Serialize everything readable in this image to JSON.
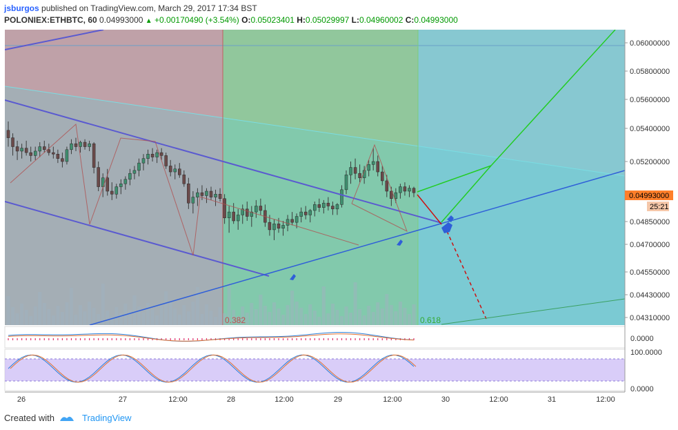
{
  "header": {
    "user": "jsburgos",
    "published_text": "published on TradingView.com, March 29, 2017 17:34 BST",
    "symbol": "POLONIEX:ETHBTC, 60",
    "last": "0.04993000",
    "change": "+0.00170490 (+3.54%)",
    "open_label": "O:",
    "open": "0.05023401",
    "high_label": "H:",
    "high": "0.05029997",
    "low_label": "L:",
    "low": "0.04960002",
    "close_label": "C:",
    "close": "0.04993000"
  },
  "footer": {
    "created_with": "Created with",
    "brand": "TradingView"
  },
  "colors": {
    "accent": "#2962ff",
    "up": "#009900",
    "price_tag": "#ff7f2a",
    "timer_tag": "#f5c7a9",
    "fib_red": "#c06060",
    "fib_green": "#7ccd7c",
    "fib_cyan": "#58c8d0"
  },
  "chart_data": {
    "type": "candlestick",
    "title": "POLONIEX:ETHBTC, 60",
    "price_axis_ticks": [
      "0.06000000",
      "0.05800000",
      "0.05600000",
      "0.05400000",
      "0.05200000",
      "0.04850000",
      "0.04700000",
      "0.04550000",
      "0.04430000",
      "0.04310000"
    ],
    "current_price_label": "0.04993000",
    "countdown_label": "25:21",
    "fib_labels": [
      "0.382",
      "0.618"
    ],
    "time_axis_ticks": [
      "26",
      "27",
      "12:00",
      "28",
      "12:00",
      "29",
      "12:00",
      "30",
      "12:00",
      "31",
      "12:00"
    ],
    "macd_axis": [
      "0.0000"
    ],
    "stoch_axis": [
      "100.0000",
      "0.0000"
    ],
    "candles": [
      {
        "o": 0.0541,
        "h": 0.0547,
        "l": 0.053,
        "c": 0.0536
      },
      {
        "o": 0.0536,
        "h": 0.0539,
        "l": 0.0524,
        "c": 0.053
      },
      {
        "o": 0.053,
        "h": 0.0534,
        "l": 0.0521,
        "c": 0.0527
      },
      {
        "o": 0.0527,
        "h": 0.0532,
        "l": 0.0522,
        "c": 0.0529
      },
      {
        "o": 0.0529,
        "h": 0.0534,
        "l": 0.0524,
        "c": 0.0526
      },
      {
        "o": 0.0526,
        "h": 0.053,
        "l": 0.052,
        "c": 0.0524
      },
      {
        "o": 0.0524,
        "h": 0.053,
        "l": 0.0521,
        "c": 0.0527
      },
      {
        "o": 0.0527,
        "h": 0.0533,
        "l": 0.0523,
        "c": 0.053
      },
      {
        "o": 0.053,
        "h": 0.0534,
        "l": 0.0526,
        "c": 0.0528
      },
      {
        "o": 0.0528,
        "h": 0.0532,
        "l": 0.0524,
        "c": 0.0526
      },
      {
        "o": 0.0526,
        "h": 0.053,
        "l": 0.0522,
        "c": 0.0525
      },
      {
        "o": 0.0525,
        "h": 0.0528,
        "l": 0.0519,
        "c": 0.0522
      },
      {
        "o": 0.0522,
        "h": 0.0526,
        "l": 0.0516,
        "c": 0.052
      },
      {
        "o": 0.052,
        "h": 0.053,
        "l": 0.0518,
        "c": 0.0528
      },
      {
        "o": 0.0528,
        "h": 0.0535,
        "l": 0.0525,
        "c": 0.0532
      },
      {
        "o": 0.0532,
        "h": 0.0536,
        "l": 0.0527,
        "c": 0.053
      },
      {
        "o": 0.053,
        "h": 0.0534,
        "l": 0.0526,
        "c": 0.0533
      },
      {
        "o": 0.0533,
        "h": 0.0535,
        "l": 0.0528,
        "c": 0.053
      },
      {
        "o": 0.053,
        "h": 0.0534,
        "l": 0.0527,
        "c": 0.0532
      },
      {
        "o": 0.0532,
        "h": 0.0533,
        "l": 0.0512,
        "c": 0.0516
      },
      {
        "o": 0.0516,
        "h": 0.052,
        "l": 0.05,
        "c": 0.0503
      },
      {
        "o": 0.0503,
        "h": 0.0512,
        "l": 0.0496,
        "c": 0.0509
      },
      {
        "o": 0.0509,
        "h": 0.0515,
        "l": 0.0497,
        "c": 0.05
      },
      {
        "o": 0.05,
        "h": 0.0506,
        "l": 0.0494,
        "c": 0.0498
      },
      {
        "o": 0.0498,
        "h": 0.0505,
        "l": 0.0495,
        "c": 0.0503
      },
      {
        "o": 0.0503,
        "h": 0.0508,
        "l": 0.0498,
        "c": 0.0505
      },
      {
        "o": 0.0505,
        "h": 0.051,
        "l": 0.0501,
        "c": 0.0508
      },
      {
        "o": 0.0508,
        "h": 0.0515,
        "l": 0.0504,
        "c": 0.0512
      },
      {
        "o": 0.0512,
        "h": 0.0517,
        "l": 0.0508,
        "c": 0.0514
      },
      {
        "o": 0.0514,
        "h": 0.0522,
        "l": 0.051,
        "c": 0.0519
      },
      {
        "o": 0.0519,
        "h": 0.0525,
        "l": 0.0514,
        "c": 0.0522
      },
      {
        "o": 0.0522,
        "h": 0.0528,
        "l": 0.0518,
        "c": 0.0525
      },
      {
        "o": 0.0525,
        "h": 0.0529,
        "l": 0.052,
        "c": 0.0523
      },
      {
        "o": 0.0523,
        "h": 0.0528,
        "l": 0.0519,
        "c": 0.0526
      },
      {
        "o": 0.0526,
        "h": 0.0529,
        "l": 0.0521,
        "c": 0.0524
      },
      {
        "o": 0.0524,
        "h": 0.0526,
        "l": 0.0515,
        "c": 0.0517
      },
      {
        "o": 0.0517,
        "h": 0.0521,
        "l": 0.051,
        "c": 0.0513
      },
      {
        "o": 0.0513,
        "h": 0.0518,
        "l": 0.0508,
        "c": 0.0515
      },
      {
        "o": 0.0515,
        "h": 0.0519,
        "l": 0.0509,
        "c": 0.0511
      },
      {
        "o": 0.0511,
        "h": 0.0514,
        "l": 0.0503,
        "c": 0.0505
      },
      {
        "o": 0.0505,
        "h": 0.0509,
        "l": 0.0488,
        "c": 0.0492
      },
      {
        "o": 0.0492,
        "h": 0.05,
        "l": 0.0485,
        "c": 0.0496
      },
      {
        "o": 0.0496,
        "h": 0.0502,
        "l": 0.049,
        "c": 0.0499
      },
      {
        "o": 0.0499,
        "h": 0.0504,
        "l": 0.0494,
        "c": 0.0497
      },
      {
        "o": 0.0497,
        "h": 0.0502,
        "l": 0.0492,
        "c": 0.05
      },
      {
        "o": 0.05,
        "h": 0.0503,
        "l": 0.0494,
        "c": 0.0496
      },
      {
        "o": 0.0496,
        "h": 0.0501,
        "l": 0.049,
        "c": 0.0498
      },
      {
        "o": 0.0498,
        "h": 0.0502,
        "l": 0.0493,
        "c": 0.0495
      },
      {
        "o": 0.0495,
        "h": 0.0498,
        "l": 0.0478,
        "c": 0.0482
      },
      {
        "o": 0.0482,
        "h": 0.049,
        "l": 0.0472,
        "c": 0.0486
      },
      {
        "o": 0.0486,
        "h": 0.0492,
        "l": 0.0478,
        "c": 0.048
      },
      {
        "o": 0.048,
        "h": 0.0488,
        "l": 0.0474,
        "c": 0.0484
      },
      {
        "o": 0.0484,
        "h": 0.0491,
        "l": 0.0478,
        "c": 0.0488
      },
      {
        "o": 0.0488,
        "h": 0.0493,
        "l": 0.048,
        "c": 0.0483
      },
      {
        "o": 0.0483,
        "h": 0.049,
        "l": 0.0476,
        "c": 0.0486
      },
      {
        "o": 0.0486,
        "h": 0.0494,
        "l": 0.0482,
        "c": 0.049
      },
      {
        "o": 0.049,
        "h": 0.0495,
        "l": 0.0484,
        "c": 0.0487
      },
      {
        "o": 0.0487,
        "h": 0.0491,
        "l": 0.0476,
        "c": 0.0479
      },
      {
        "o": 0.0479,
        "h": 0.0484,
        "l": 0.047,
        "c": 0.0474
      },
      {
        "o": 0.0474,
        "h": 0.0481,
        "l": 0.0467,
        "c": 0.0478
      },
      {
        "o": 0.0478,
        "h": 0.0482,
        "l": 0.0472,
        "c": 0.0475
      },
      {
        "o": 0.0475,
        "h": 0.048,
        "l": 0.047,
        "c": 0.0477
      },
      {
        "o": 0.0477,
        "h": 0.0484,
        "l": 0.0473,
        "c": 0.0481
      },
      {
        "o": 0.0481,
        "h": 0.0486,
        "l": 0.0477,
        "c": 0.0479
      },
      {
        "o": 0.0479,
        "h": 0.0485,
        "l": 0.0475,
        "c": 0.0483
      },
      {
        "o": 0.0483,
        "h": 0.0489,
        "l": 0.0479,
        "c": 0.0486
      },
      {
        "o": 0.0486,
        "h": 0.049,
        "l": 0.0481,
        "c": 0.0484
      },
      {
        "o": 0.0484,
        "h": 0.0488,
        "l": 0.0479,
        "c": 0.0487
      },
      {
        "o": 0.0487,
        "h": 0.0493,
        "l": 0.0483,
        "c": 0.0491
      },
      {
        "o": 0.0491,
        "h": 0.0495,
        "l": 0.0486,
        "c": 0.0489
      },
      {
        "o": 0.0489,
        "h": 0.0494,
        "l": 0.0485,
        "c": 0.0492
      },
      {
        "o": 0.0492,
        "h": 0.0496,
        "l": 0.0487,
        "c": 0.049
      },
      {
        "o": 0.049,
        "h": 0.0493,
        "l": 0.0484,
        "c": 0.0488
      },
      {
        "o": 0.0488,
        "h": 0.0492,
        "l": 0.0484,
        "c": 0.0491
      },
      {
        "o": 0.0491,
        "h": 0.0504,
        "l": 0.0489,
        "c": 0.0501
      },
      {
        "o": 0.0501,
        "h": 0.0514,
        "l": 0.0498,
        "c": 0.0511
      },
      {
        "o": 0.0511,
        "h": 0.052,
        "l": 0.0505,
        "c": 0.0516
      },
      {
        "o": 0.0516,
        "h": 0.0522,
        "l": 0.0508,
        "c": 0.0512
      },
      {
        "o": 0.0512,
        "h": 0.0518,
        "l": 0.0506,
        "c": 0.0509
      },
      {
        "o": 0.0509,
        "h": 0.0517,
        "l": 0.0505,
        "c": 0.0514
      },
      {
        "o": 0.0514,
        "h": 0.0521,
        "l": 0.051,
        "c": 0.0518
      },
      {
        "o": 0.0518,
        "h": 0.0529,
        "l": 0.0514,
        "c": 0.052
      },
      {
        "o": 0.052,
        "h": 0.0524,
        "l": 0.051,
        "c": 0.0513
      },
      {
        "o": 0.0513,
        "h": 0.0517,
        "l": 0.0504,
        "c": 0.0507
      },
      {
        "o": 0.0507,
        "h": 0.0511,
        "l": 0.0496,
        "c": 0.05
      },
      {
        "o": 0.05,
        "h": 0.0503,
        "l": 0.049,
        "c": 0.0495
      },
      {
        "o": 0.0495,
        "h": 0.0502,
        "l": 0.0492,
        "c": 0.0499
      },
      {
        "o": 0.0499,
        "h": 0.0505,
        "l": 0.0495,
        "c": 0.0503
      },
      {
        "o": 0.0503,
        "h": 0.0506,
        "l": 0.0497,
        "c": 0.05
      },
      {
        "o": 0.05,
        "h": 0.0504,
        "l": 0.0496,
        "c": 0.0502
      },
      {
        "o": 0.0502,
        "h": 0.0503,
        "l": 0.0496,
        "c": 0.0499
      }
    ]
  }
}
